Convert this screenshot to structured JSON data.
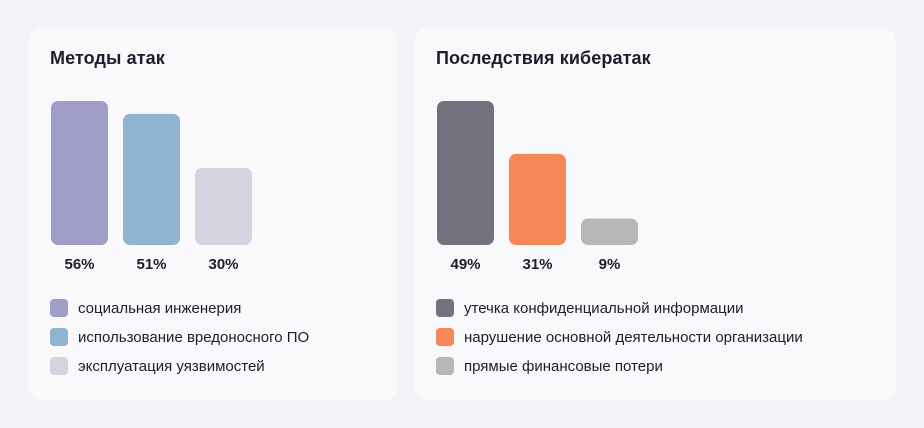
{
  "chart_data": [
    {
      "type": "bar",
      "title": "Методы атак",
      "categories": [
        "социальная инженерия",
        "использование вредоносного ПО",
        "эксплуатация уязвимостей"
      ],
      "values": [
        56,
        51,
        30
      ],
      "value_labels": [
        "56%",
        "51%",
        "30%"
      ],
      "colors": [
        "#a09ec7",
        "#90b4cf",
        "#d6d3e1"
      ],
      "ylim": [
        0,
        56
      ],
      "grid": false,
      "legend_position": "bottom"
    },
    {
      "type": "bar",
      "title": "Последствия кибератак",
      "categories": [
        "утечка конфиденциальной информации",
        "нарушение основной деятельности организации",
        "прямые финансовые потери"
      ],
      "values": [
        49,
        31,
        9
      ],
      "value_labels": [
        "49%",
        "31%",
        "9%"
      ],
      "colors": [
        "#74717f",
        "#f58856",
        "#b7b7b7"
      ],
      "ylim": [
        0,
        49
      ],
      "grid": false,
      "legend_position": "bottom"
    }
  ]
}
